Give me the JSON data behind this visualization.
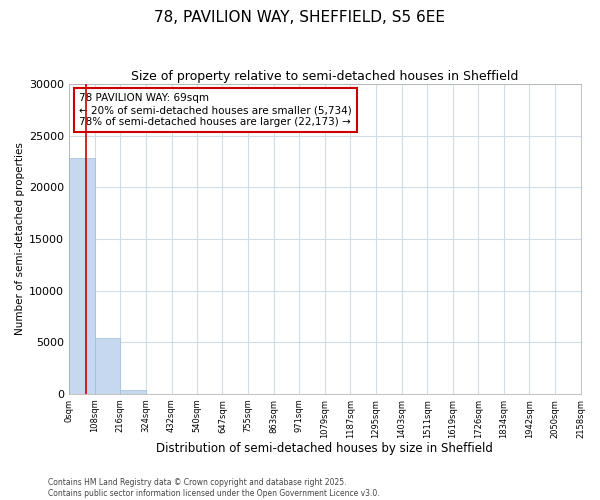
{
  "title": "78, PAVILION WAY, SHEFFIELD, S5 6EE",
  "subtitle": "Size of property relative to semi-detached houses in Sheffield",
  "xlabel": "Distribution of semi-detached houses by size in Sheffield",
  "ylabel": "Number of semi-detached properties",
  "annotation_text": "78 PAVILION WAY: 69sqm\n← 20% of semi-detached houses are smaller (5,734)\n78% of semi-detached houses are larger (22,173) →",
  "footer_line1": "Contains HM Land Registry data © Crown copyright and database right 2025.",
  "footer_line2": "Contains public sector information licensed under the Open Government Licence v3.0.",
  "bin_edges": [
    0,
    108,
    216,
    324,
    432,
    540,
    647,
    755,
    863,
    971,
    1079,
    1187,
    1295,
    1403,
    1511,
    1619,
    1726,
    1834,
    1942,
    2050,
    2158
  ],
  "bin_counts": [
    22800,
    5400,
    400,
    0,
    0,
    0,
    0,
    0,
    0,
    0,
    0,
    0,
    0,
    0,
    0,
    0,
    0,
    0,
    0,
    0
  ],
  "property_size": 69,
  "bar_color": "#c5d8ef",
  "bar_edgecolor": "#a0bcd8",
  "marker_color": "#cc0000",
  "annotation_box_color": "#cc0000",
  "ylim": [
    0,
    30000
  ],
  "yticks": [
    0,
    5000,
    10000,
    15000,
    20000,
    25000,
    30000
  ],
  "background_color": "#ffffff",
  "grid_color": "#d0dce8",
  "title_fontsize": 11,
  "subtitle_fontsize": 9
}
